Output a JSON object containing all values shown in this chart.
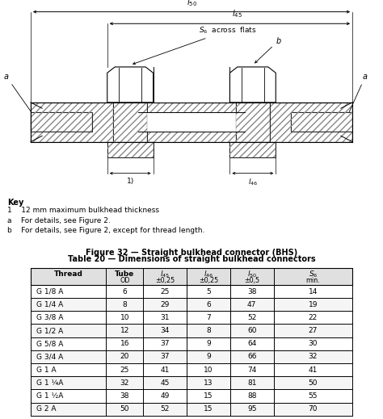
{
  "figure_title": "Figure 32 — Straight bulkhead connector (BHS)",
  "table_title": "Table 20 — Dimensions of straight bulkhead connectors",
  "key_title": "Key",
  "key_line1": "1    12 mm maximum bulkhead thickness",
  "key_line2": "a    For details, see Figure 2.",
  "key_line3": "b    For details, see Figure 2, except for thread length.",
  "col_header_line1": [
    "Thread",
    "Tube",
    "l45",
    "l46",
    "l50",
    "S6"
  ],
  "col_header_line2": [
    "",
    "OD",
    "±0,25",
    "±0,25",
    "±0,5",
    "min."
  ],
  "rows": [
    [
      "G 1/8 A",
      "6",
      "25",
      "5",
      "38",
      "14"
    ],
    [
      "G 1/4 A",
      "8",
      "29",
      "6",
      "47",
      "19"
    ],
    [
      "G 3/8 A",
      "10",
      "31",
      "7",
      "52",
      "22"
    ],
    [
      "G 1/2 A",
      "12",
      "34",
      "8",
      "60",
      "27"
    ],
    [
      "G 5/8 A",
      "16",
      "37",
      "9",
      "64",
      "30"
    ],
    [
      "G 3/4 A",
      "20",
      "37",
      "9",
      "66",
      "32"
    ],
    [
      "G 1 A",
      "25",
      "41",
      "10",
      "74",
      "41"
    ],
    [
      "G 1 ¼A",
      "32",
      "45",
      "13",
      "81",
      "50"
    ],
    [
      "G 1 ½A",
      "38",
      "49",
      "15",
      "88",
      "55"
    ],
    [
      "G 2 A",
      "50",
      "52",
      "15",
      "95",
      "70"
    ]
  ],
  "bg_color": "#ffffff",
  "text_color": "#000000",
  "line_color": "#000000"
}
